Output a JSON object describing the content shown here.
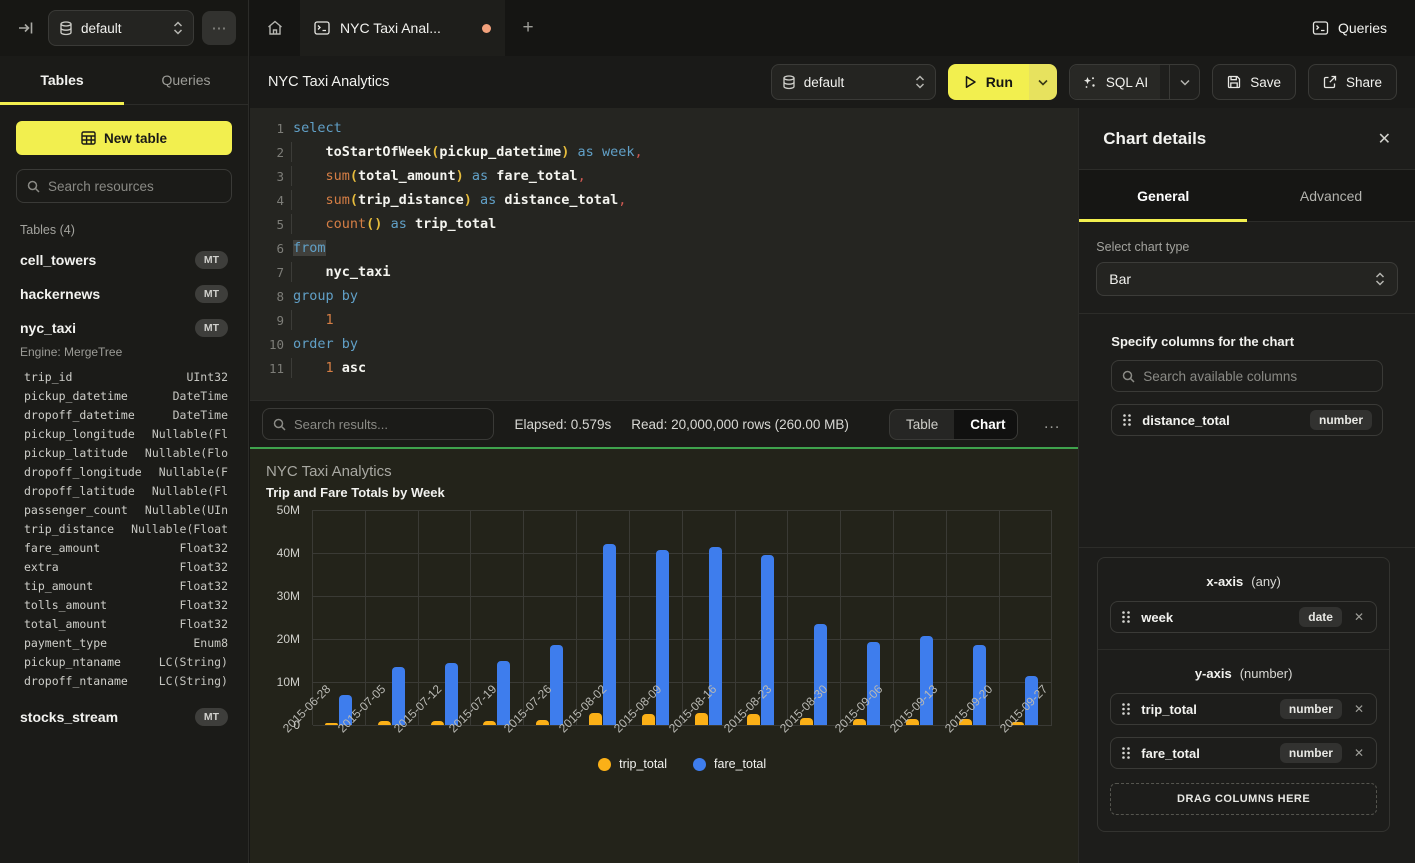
{
  "colors": {
    "accent_yellow": "#f2ef4f",
    "success_green": "#3fa34d",
    "tab_dirty_dot": "#f2a17c",
    "bar_yellow": "#fbb017",
    "bar_blue": "#3e7ded"
  },
  "sidebar": {
    "database": "default",
    "more_label": "⋯",
    "tabs": [
      {
        "label": "Tables",
        "active": true
      },
      {
        "label": "Queries",
        "active": false
      }
    ],
    "new_table_label": "New table",
    "search_placeholder": "Search resources",
    "section_label": "Tables (4)",
    "tables": [
      {
        "name": "cell_towers",
        "badge": "MT"
      },
      {
        "name": "hackernews",
        "badge": "MT"
      },
      {
        "name": "nyc_taxi",
        "badge": "MT",
        "expanded": true,
        "engine": "Engine: MergeTree",
        "columns": [
          [
            "trip_id",
            "UInt32"
          ],
          [
            "pickup_datetime",
            "DateTime"
          ],
          [
            "dropoff_datetime",
            "DateTime"
          ],
          [
            "pickup_longitude",
            "Nullable(Fl"
          ],
          [
            "pickup_latitude",
            "Nullable(Flo"
          ],
          [
            "dropoff_longitude",
            "Nullable(F"
          ],
          [
            "dropoff_latitude",
            "Nullable(Fl"
          ],
          [
            "passenger_count",
            "Nullable(UIn"
          ],
          [
            "trip_distance",
            "Nullable(Float"
          ],
          [
            "fare_amount",
            "Float32"
          ],
          [
            "extra",
            "Float32"
          ],
          [
            "tip_amount",
            "Float32"
          ],
          [
            "tolls_amount",
            "Float32"
          ],
          [
            "total_amount",
            "Float32"
          ],
          [
            "payment_type",
            "Enum8"
          ],
          [
            "pickup_ntaname",
            "LC(String)"
          ],
          [
            "dropoff_ntaname",
            "LC(String)"
          ]
        ]
      },
      {
        "name": "stocks_stream",
        "badge": "MT"
      }
    ]
  },
  "tabbar": {
    "active_tab": "NYC Taxi Anal...",
    "queries_label": "Queries"
  },
  "toolbar": {
    "title": "NYC Taxi Analytics",
    "database": "default",
    "run_label": "Run",
    "sql_ai_label": "SQL AI",
    "save_label": "Save",
    "share_label": "Share"
  },
  "editor": {
    "lines": [
      {
        "n": 1,
        "g": false,
        "tokens": [
          [
            "select",
            "kw"
          ]
        ]
      },
      {
        "n": 2,
        "g": true,
        "tokens": [
          [
            "    ",
            ""
          ],
          [
            "toStartOfWeek",
            "id"
          ],
          [
            "(",
            "par"
          ],
          [
            "pickup_datetime",
            "id"
          ],
          [
            ")",
            "par"
          ],
          [
            " ",
            ""
          ],
          [
            "as",
            "kw"
          ],
          [
            " ",
            ""
          ],
          [
            "week",
            "kw"
          ],
          [
            ",",
            "com"
          ]
        ]
      },
      {
        "n": 3,
        "g": true,
        "tokens": [
          [
            "    ",
            ""
          ],
          [
            "sum",
            "fn"
          ],
          [
            "(",
            "par"
          ],
          [
            "total_amount",
            "id"
          ],
          [
            ")",
            "par"
          ],
          [
            " ",
            ""
          ],
          [
            "as",
            "kw"
          ],
          [
            " ",
            ""
          ],
          [
            "fare_total",
            "id"
          ],
          [
            ",",
            "com"
          ]
        ]
      },
      {
        "n": 4,
        "g": true,
        "tokens": [
          [
            "    ",
            ""
          ],
          [
            "sum",
            "fn"
          ],
          [
            "(",
            "par"
          ],
          [
            "trip_distance",
            "id"
          ],
          [
            ")",
            "par"
          ],
          [
            " ",
            ""
          ],
          [
            "as",
            "kw"
          ],
          [
            " ",
            ""
          ],
          [
            "distance_total",
            "id"
          ],
          [
            ",",
            "com"
          ]
        ]
      },
      {
        "n": 5,
        "g": true,
        "tokens": [
          [
            "    ",
            ""
          ],
          [
            "count",
            "fn"
          ],
          [
            "(",
            "par"
          ],
          [
            ")",
            "par"
          ],
          [
            " ",
            ""
          ],
          [
            "as",
            "kw"
          ],
          [
            " ",
            ""
          ],
          [
            "trip_total",
            "id"
          ]
        ]
      },
      {
        "n": 6,
        "g": false,
        "tokens": [
          [
            "from",
            "kw hl"
          ]
        ]
      },
      {
        "n": 7,
        "g": true,
        "tokens": [
          [
            "    ",
            ""
          ],
          [
            "nyc_taxi",
            "id"
          ]
        ]
      },
      {
        "n": 8,
        "g": false,
        "tokens": [
          [
            "group by",
            "kw"
          ]
        ]
      },
      {
        "n": 9,
        "g": true,
        "tokens": [
          [
            "    ",
            ""
          ],
          [
            "1",
            "num"
          ]
        ]
      },
      {
        "n": 10,
        "g": false,
        "tokens": [
          [
            "order by",
            "kw"
          ]
        ]
      },
      {
        "n": 11,
        "g": true,
        "tokens": [
          [
            "    ",
            ""
          ],
          [
            "1",
            "num"
          ],
          [
            " ",
            ""
          ],
          [
            "asc",
            "id"
          ]
        ]
      }
    ]
  },
  "results": {
    "search_placeholder": "Search results...",
    "elapsed": "Elapsed: 0.579s",
    "read": "Read: 20,000,000 rows (260.00 MB)",
    "views": [
      {
        "label": "Table",
        "active": false
      },
      {
        "label": "Chart",
        "active": true
      }
    ],
    "more_label": "..."
  },
  "chart_data": {
    "type": "bar",
    "title": "NYC Taxi Analytics",
    "subtitle": "Trip and Fare Totals by Week",
    "categories": [
      "2015-06-28",
      "2015-07-05",
      "2015-07-12",
      "2015-07-19",
      "2015-07-26",
      "2015-08-02",
      "2015-08-09",
      "2015-08-16",
      "2015-08-23",
      "2015-08-30",
      "2015-09-06",
      "2015-09-13",
      "2015-09-20",
      "2015-09-27"
    ],
    "series": [
      {
        "name": "trip_total",
        "color": "#fbb017",
        "values_millions": [
          0.55,
          0.95,
          0.95,
          0.95,
          1.2,
          2.8,
          2.6,
          2.8,
          2.6,
          1.65,
          1.35,
          1.45,
          1.4,
          0.75
        ]
      },
      {
        "name": "fare_total",
        "color": "#3e7ded",
        "values_millions": [
          7.0,
          13.6,
          14.5,
          15.0,
          18.7,
          42.2,
          40.8,
          41.3,
          39.5,
          23.5,
          19.3,
          20.8,
          18.7,
          11.5
        ]
      }
    ],
    "ylabel": "",
    "xlabel": "",
    "ylim_millions": [
      0,
      50
    ],
    "yticks": [
      "50M",
      "40M",
      "30M",
      "20M",
      "10M",
      "0"
    ],
    "grid": true,
    "legend_position": "bottom"
  },
  "panel": {
    "title": "Chart details",
    "close_label": "✕",
    "tabs": [
      {
        "label": "General",
        "active": true
      },
      {
        "label": "Advanced",
        "active": false
      }
    ],
    "chart_type_label": "Select chart type",
    "chart_type": "Bar",
    "columns_label": "Specify columns for the chart",
    "search_placeholder": "Search available columns",
    "available_columns": [
      {
        "name": "distance_total",
        "type": "number"
      }
    ],
    "x_axis": {
      "label": "x-axis",
      "hint": "(any)",
      "items": [
        {
          "name": "week",
          "type": "date"
        }
      ]
    },
    "y_axis": {
      "label": "y-axis",
      "hint": "(number)",
      "items": [
        {
          "name": "trip_total",
          "type": "number"
        },
        {
          "name": "fare_total",
          "type": "number"
        }
      ]
    },
    "drop_label": "DRAG COLUMNS HERE"
  }
}
